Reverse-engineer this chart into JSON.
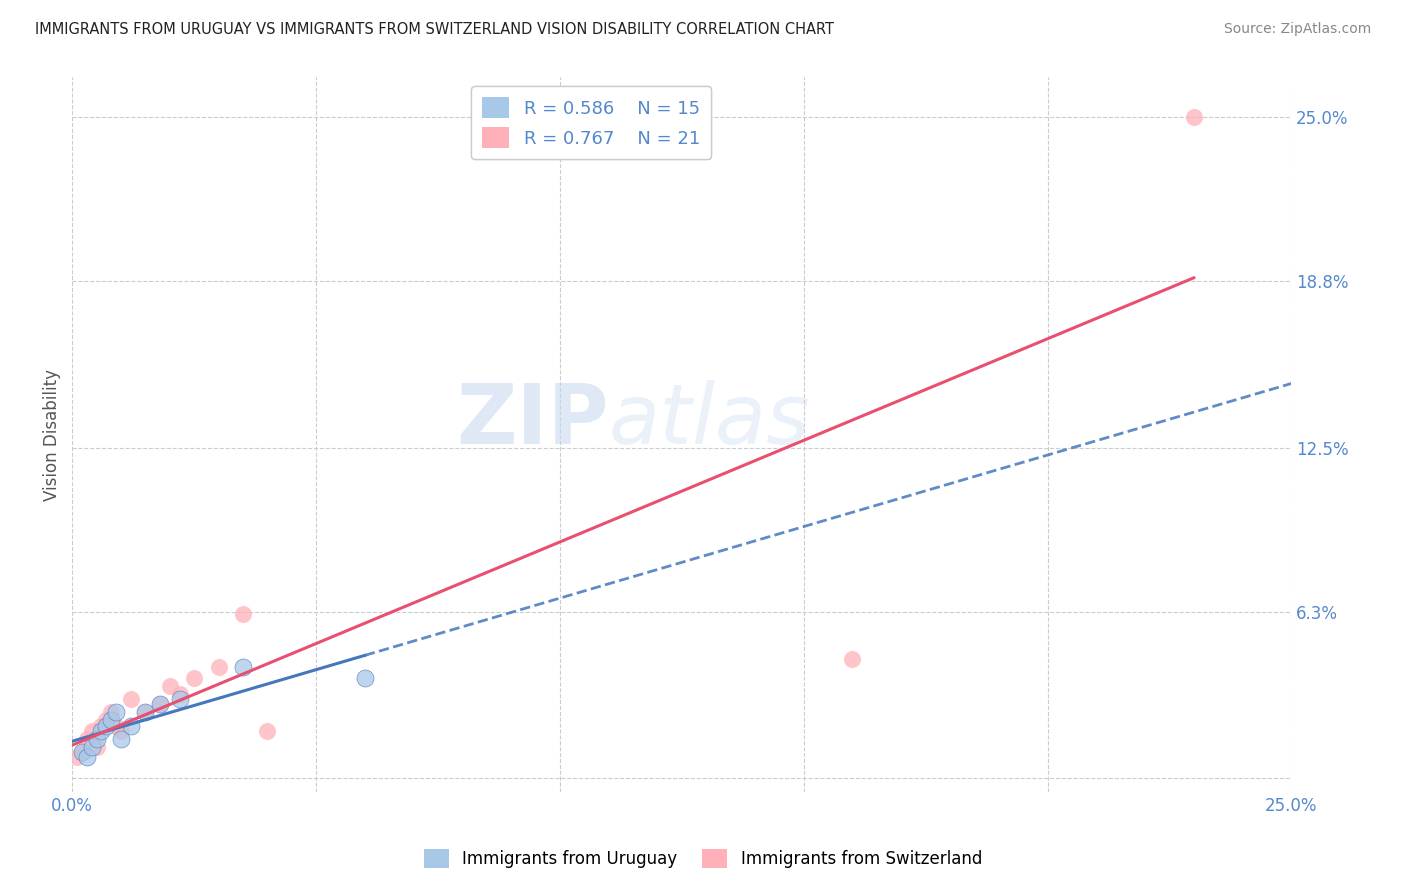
{
  "title": "IMMIGRANTS FROM URUGUAY VS IMMIGRANTS FROM SWITZERLAND VISION DISABILITY CORRELATION CHART",
  "source": "Source: ZipAtlas.com",
  "ylabel": "Vision Disability",
  "xlim": [
    0.0,
    0.25
  ],
  "ylim": [
    -0.005,
    0.265
  ],
  "xtick_positions": [
    0.0,
    0.05,
    0.1,
    0.15,
    0.2,
    0.25
  ],
  "xtick_labels": [
    "0.0%",
    "",
    "",
    "",
    "",
    "25.0%"
  ],
  "ytick_positions": [
    0.0,
    0.063,
    0.125,
    0.188,
    0.25
  ],
  "ytick_labels": [
    "",
    "6.3%",
    "12.5%",
    "18.8%",
    "25.0%"
  ],
  "uruguay_color": "#a8c8e8",
  "uruguay_line_color": "#4477bb",
  "switzerland_color": "#ffb0b8",
  "switzerland_line_color": "#e85070",
  "uruguay_R": 0.586,
  "uruguay_N": 15,
  "switzerland_R": 0.767,
  "switzerland_N": 21,
  "uruguay_scatter_x": [
    0.002,
    0.003,
    0.004,
    0.005,
    0.006,
    0.007,
    0.008,
    0.009,
    0.01,
    0.012,
    0.015,
    0.018,
    0.022,
    0.035,
    0.06
  ],
  "uruguay_scatter_y": [
    0.01,
    0.008,
    0.012,
    0.015,
    0.018,
    0.02,
    0.022,
    0.025,
    0.015,
    0.02,
    0.025,
    0.028,
    0.03,
    0.042,
    0.038
  ],
  "switzerland_scatter_x": [
    0.001,
    0.002,
    0.003,
    0.004,
    0.005,
    0.006,
    0.007,
    0.008,
    0.009,
    0.01,
    0.012,
    0.015,
    0.018,
    0.02,
    0.022,
    0.025,
    0.03,
    0.035,
    0.04,
    0.16,
    0.23
  ],
  "switzerland_scatter_y": [
    0.008,
    0.01,
    0.015,
    0.018,
    0.012,
    0.02,
    0.022,
    0.025,
    0.02,
    0.018,
    0.03,
    0.025,
    0.028,
    0.035,
    0.032,
    0.038,
    0.042,
    0.062,
    0.018,
    0.045,
    0.25
  ],
  "watermark_zip": "ZIP",
  "watermark_atlas": "atlas",
  "background_color": "#ffffff",
  "grid_color": "#cccccc",
  "tick_color": "#5588cc",
  "legend_text_color": "#5588cc"
}
